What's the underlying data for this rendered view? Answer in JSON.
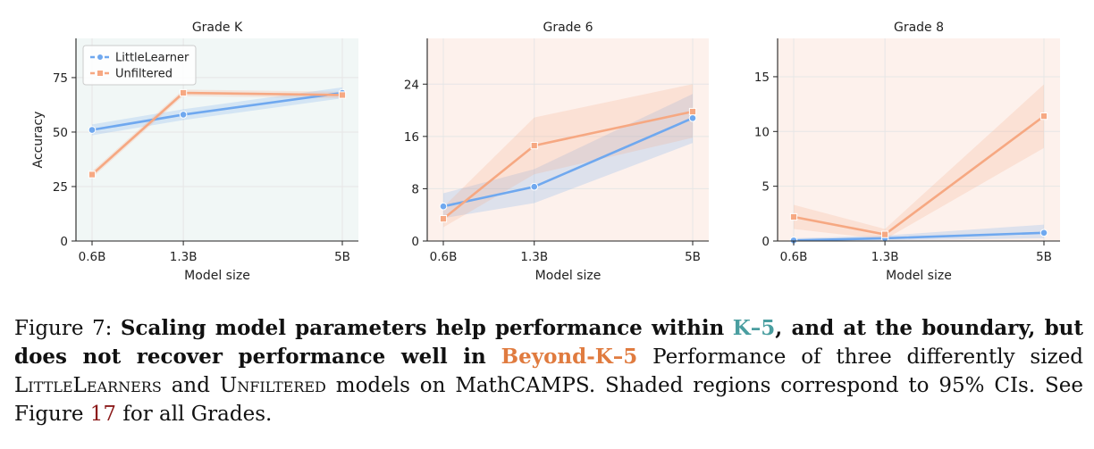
{
  "colors": {
    "littlelearner": "#6fa8ef",
    "unfiltered": "#f6a882",
    "panel_bg_k": "#f1f7f6",
    "panel_bg_beyond": "#fdf1ec",
    "k5_text": "#4a9ea0",
    "beyond_text": "#e07b3f",
    "ref_link": "#8b1a1a"
  },
  "chart_data": [
    {
      "type": "line",
      "title": "Grade K",
      "xlabel": "Model size",
      "ylabel": "Accuracy",
      "x": [
        0.6,
        1.3,
        5
      ],
      "x_tick_labels": [
        "0.6B",
        "1.3B",
        "5B"
      ],
      "x_scale": "log",
      "ylim": [
        0,
        93
      ],
      "yticks": [
        0,
        25,
        50,
        75
      ],
      "grid": true,
      "legend": "top-left",
      "background": "k5",
      "series": [
        {
          "name": "LittleLearner",
          "values": [
            51,
            58,
            68
          ],
          "ci_lower": [
            48.5,
            55.5,
            65.5
          ],
          "ci_upper": [
            53.5,
            60.5,
            70.5
          ]
        },
        {
          "name": "Unfiltered",
          "values": [
            30.5,
            68,
            67
          ],
          "ci_lower": [
            29,
            66.5,
            65.5
          ],
          "ci_upper": [
            32,
            69.5,
            68.5
          ]
        }
      ]
    },
    {
      "type": "line",
      "title": "Grade 6",
      "xlabel": "Model size",
      "ylabel": "",
      "x": [
        0.6,
        1.3,
        5
      ],
      "x_tick_labels": [
        "0.6B",
        "1.3B",
        "5B"
      ],
      "x_scale": "log",
      "ylim": [
        0,
        31
      ],
      "yticks": [
        0,
        8,
        16,
        24
      ],
      "grid": true,
      "background": "beyond",
      "series": [
        {
          "name": "LittleLearner",
          "values": [
            5.3,
            8.3,
            18.8
          ],
          "ci_lower": [
            3.5,
            5.8,
            15
          ],
          "ci_upper": [
            7.3,
            11,
            22.5
          ]
        },
        {
          "name": "Unfiltered",
          "values": [
            3.4,
            14.6,
            19.8
          ],
          "ci_lower": [
            2.1,
            10.2,
            15.8
          ],
          "ci_upper": [
            5.2,
            18.9,
            24
          ]
        }
      ]
    },
    {
      "type": "line",
      "title": "Grade 8",
      "xlabel": "Model size",
      "ylabel": "",
      "x": [
        0.6,
        1.3,
        5
      ],
      "x_tick_labels": [
        "0.6B",
        "1.3B",
        "5B"
      ],
      "x_scale": "log",
      "ylim": [
        0,
        18.5
      ],
      "yticks": [
        0,
        5,
        10,
        15
      ],
      "grid": true,
      "background": "beyond",
      "series": [
        {
          "name": "LittleLearner",
          "values": [
            0.05,
            0.25,
            0.75
          ],
          "ci_lower": [
            0,
            0.05,
            0.25
          ],
          "ci_upper": [
            0.25,
            0.5,
            1.5
          ]
        },
        {
          "name": "Unfiltered",
          "values": [
            2.2,
            0.6,
            11.4
          ],
          "ci_lower": [
            1.1,
            0.15,
            8.5
          ],
          "ci_upper": [
            3.3,
            1.1,
            14.3
          ]
        }
      ]
    }
  ],
  "caption": {
    "prefix": "Figure 7:",
    "bold_part1": "Scaling model parameters help performance within",
    "k5": "K–5",
    "bold_part2": ", and at the boundary, but does not recover performance well in",
    "beyond": "Beyond-K–5",
    "rest1": "Performance of three differently sized",
    "littlelearners_cap1": "L",
    "littlelearners_sc1": "ittle",
    "littlelearners_cap2": "L",
    "littlelearners_sc2": "earners",
    "and_text": "and",
    "unfiltered_cap": "U",
    "unfiltered_sc": "nfiltered",
    "rest2": "models on MathCAMPS. Shaded regions correspond to 95% CIs. See Figure",
    "figref": "17",
    "rest3": "for all Grades."
  }
}
